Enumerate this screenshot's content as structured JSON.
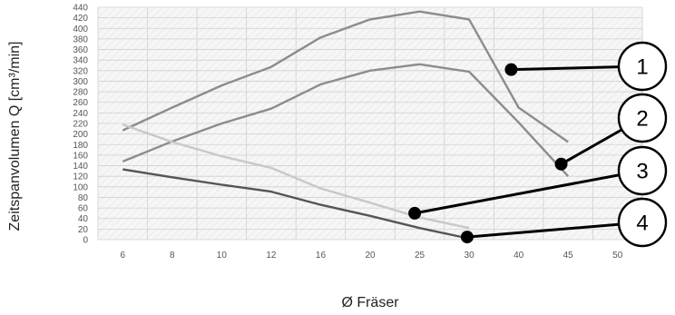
{
  "chart_data": {
    "type": "line",
    "title": "",
    "xlabel": "Ø Fräser",
    "ylabel": "Zeitspanvolumen Q [cm³/min]",
    "categories": [
      "6",
      "8",
      "10",
      "12",
      "16",
      "20",
      "25",
      "30",
      "40",
      "45",
      "50"
    ],
    "ylim": [
      0,
      440
    ],
    "yticks": [
      0,
      20,
      40,
      60,
      80,
      100,
      120,
      140,
      160,
      180,
      200,
      220,
      240,
      260,
      280,
      300,
      320,
      340,
      360,
      380,
      400,
      420,
      440
    ],
    "grid": true,
    "series": [
      {
        "values": [
          207,
          250,
          292,
          327,
          383,
          417,
          432,
          417,
          250,
          185,
          null
        ],
        "color": "#8c8c8c"
      },
      {
        "values": [
          148,
          186,
          220,
          248,
          294,
          320,
          332,
          318,
          222,
          120,
          null
        ],
        "color": "#8c8c8c"
      },
      {
        "values": [
          218,
          185,
          158,
          136,
          97,
          70,
          42,
          22,
          null,
          null,
          null
        ],
        "color": "#c8c8c8"
      },
      {
        "values": [
          133,
          118,
          104,
          91,
          66,
          45,
          22,
          2,
          null,
          null,
          null
        ],
        "color": "#555555"
      }
    ],
    "annotations": [
      {
        "label": "1",
        "series": 0,
        "x": 38.5,
        "y": 322
      },
      {
        "label": "2",
        "series": 1,
        "x": 44.3,
        "y": 143
      },
      {
        "label": "3",
        "series": 2,
        "x": 24.5,
        "y": 50
      },
      {
        "label": "4",
        "series": 3,
        "x": 29.8,
        "y": 5
      }
    ]
  }
}
